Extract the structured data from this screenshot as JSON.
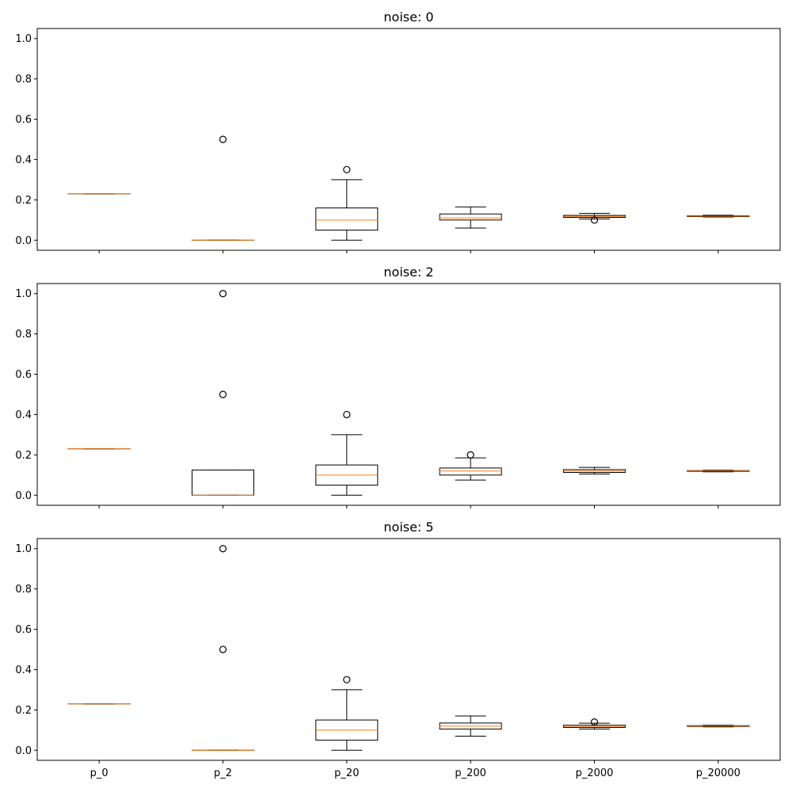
{
  "chart_data": {
    "type": "box",
    "categories": [
      "p_0",
      "p_2",
      "p_20",
      "p_200",
      "p_2000",
      "p_20000"
    ],
    "shared_x": true,
    "ylim": [
      -0.05,
      1.05
    ],
    "yticks": [
      "0.0",
      "0.2",
      "0.4",
      "0.6",
      "0.8",
      "1.0"
    ],
    "colors": {
      "box": "#000000",
      "median": "#ff7f0e",
      "background": "#ffffff"
    },
    "panels": [
      {
        "title": "noise: 0",
        "boxes": [
          {
            "category": "p_0",
            "whislo": 0.23,
            "q1": 0.23,
            "med": 0.23,
            "q3": 0.23,
            "whishi": 0.23,
            "fliers": []
          },
          {
            "category": "p_2",
            "whislo": 0.0,
            "q1": 0.0,
            "med": 0.0,
            "q3": 0.0,
            "whishi": 0.0,
            "fliers": [
              0.5
            ]
          },
          {
            "category": "p_20",
            "whislo": 0.0,
            "q1": 0.05,
            "med": 0.1,
            "q3": 0.16,
            "whishi": 0.3,
            "fliers": [
              0.35
            ]
          },
          {
            "category": "p_200",
            "whislo": 0.06,
            "q1": 0.1,
            "med": 0.11,
            "q3": 0.13,
            "whishi": 0.165,
            "fliers": []
          },
          {
            "category": "p_2000",
            "whislo": 0.105,
            "q1": 0.113,
            "med": 0.118,
            "q3": 0.123,
            "whishi": 0.133,
            "fliers": [
              0.1
            ]
          },
          {
            "category": "p_20000",
            "whislo": 0.115,
            "q1": 0.117,
            "med": 0.119,
            "q3": 0.121,
            "whishi": 0.124,
            "fliers": []
          }
        ]
      },
      {
        "title": "noise: 2",
        "boxes": [
          {
            "category": "p_0",
            "whislo": 0.23,
            "q1": 0.23,
            "med": 0.23,
            "q3": 0.23,
            "whishi": 0.23,
            "fliers": []
          },
          {
            "category": "p_2",
            "whislo": 0.0,
            "q1": 0.0,
            "med": 0.0,
            "q3": 0.125,
            "whishi": 0.125,
            "fliers": [
              0.5,
              1.0
            ]
          },
          {
            "category": "p_20",
            "whislo": 0.0,
            "q1": 0.05,
            "med": 0.1,
            "q3": 0.15,
            "whishi": 0.3,
            "fliers": [
              0.4
            ]
          },
          {
            "category": "p_200",
            "whislo": 0.075,
            "q1": 0.1,
            "med": 0.12,
            "q3": 0.135,
            "whishi": 0.185,
            "fliers": [
              0.2
            ]
          },
          {
            "category": "p_2000",
            "whislo": 0.105,
            "q1": 0.113,
            "med": 0.12,
            "q3": 0.127,
            "whishi": 0.138,
            "fliers": []
          },
          {
            "category": "p_20000",
            "whislo": 0.116,
            "q1": 0.118,
            "med": 0.12,
            "q3": 0.122,
            "whishi": 0.124,
            "fliers": []
          }
        ]
      },
      {
        "title": "noise: 5",
        "boxes": [
          {
            "category": "p_0",
            "whislo": 0.23,
            "q1": 0.23,
            "med": 0.23,
            "q3": 0.23,
            "whishi": 0.23,
            "fliers": []
          },
          {
            "category": "p_2",
            "whislo": 0.0,
            "q1": 0.0,
            "med": 0.0,
            "q3": 0.0,
            "whishi": 0.0,
            "fliers": [
              0.5,
              1.0
            ]
          },
          {
            "category": "p_20",
            "whislo": 0.0,
            "q1": 0.05,
            "med": 0.1,
            "q3": 0.15,
            "whishi": 0.3,
            "fliers": [
              0.35
            ]
          },
          {
            "category": "p_200",
            "whislo": 0.07,
            "q1": 0.105,
            "med": 0.12,
            "q3": 0.135,
            "whishi": 0.17,
            "fliers": []
          },
          {
            "category": "p_2000",
            "whislo": 0.105,
            "q1": 0.113,
            "med": 0.118,
            "q3": 0.124,
            "whishi": 0.134,
            "fliers": [
              0.14
            ]
          },
          {
            "category": "p_20000",
            "whislo": 0.116,
            "q1": 0.118,
            "med": 0.12,
            "q3": 0.122,
            "whishi": 0.124,
            "fliers": []
          }
        ]
      }
    ]
  }
}
